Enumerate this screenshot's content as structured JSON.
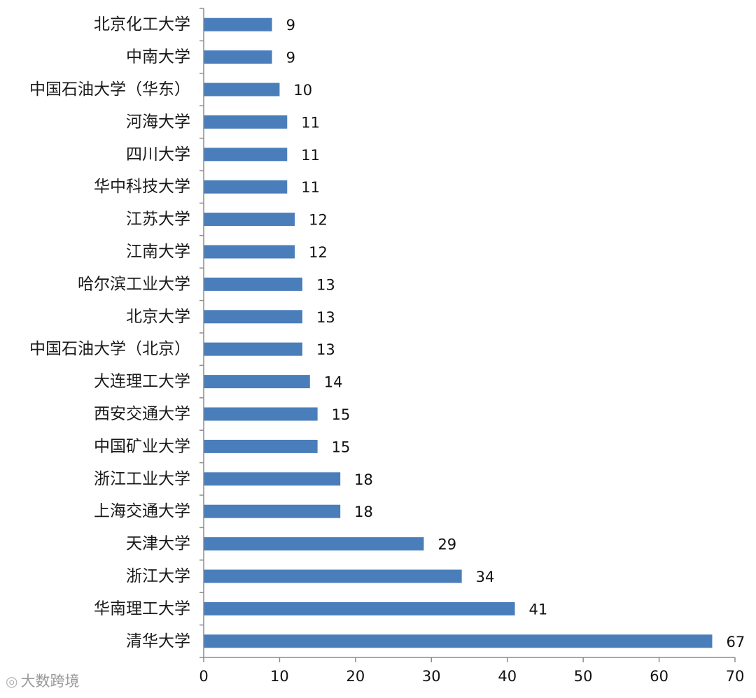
{
  "chart_data": {
    "type": "bar",
    "orientation": "horizontal",
    "categories": [
      "清华大学",
      "华南理工大学",
      "浙江大学",
      "天津大学",
      "上海交通大学",
      "浙江工业大学",
      "中国矿业大学",
      "西安交通大学",
      "大连理工大学",
      "中国石油大学（北京）",
      "北京大学",
      "哈尔滨工业大学",
      "江南大学",
      "江苏大学",
      "华中科技大学",
      "四川大学",
      "河海大学",
      "中国石油大学（华东）",
      "中南大学",
      "北京化工大学"
    ],
    "values": [
      67,
      41,
      34,
      29,
      18,
      18,
      15,
      15,
      14,
      13,
      13,
      13,
      12,
      12,
      11,
      11,
      11,
      10,
      9,
      9
    ],
    "xlim": [
      0,
      70
    ],
    "xticks": [
      "0",
      "10",
      "20",
      "30",
      "40",
      "50",
      "60",
      "70"
    ],
    "grid": false,
    "legend": "none",
    "colors": {
      "bar": "#4a7ebb",
      "axis": "#8c8c8c"
    }
  },
  "watermark": {
    "icon": "weibo-logo-icon",
    "text": "大数跨境"
  }
}
